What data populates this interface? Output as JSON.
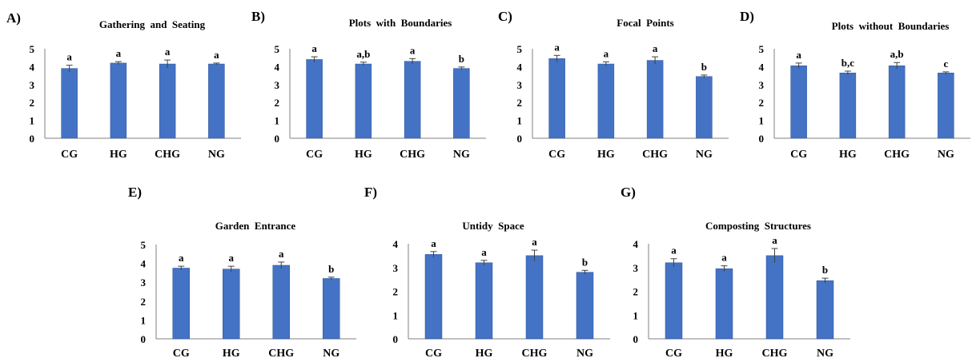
{
  "colors": {
    "bar": "#4472C4",
    "bar_edge": "#2F5597",
    "error_bar": "#404040",
    "axis": "#808080"
  },
  "chart_data": [
    {
      "type": "bar",
      "panel": "A)",
      "title": "Gathering  and  Seating",
      "categories": [
        "CG",
        "HG",
        "CHG",
        "NG"
      ],
      "values": [
        3.9,
        4.2,
        4.15,
        4.15
      ],
      "errors": [
        0.18,
        0.08,
        0.22,
        0.05
      ],
      "significance": [
        "a",
        "a",
        "a",
        "a"
      ],
      "ylim": [
        0,
        5
      ],
      "yticks": [
        "0",
        "1",
        "2",
        "3",
        "4",
        "5"
      ]
    },
    {
      "type": "bar",
      "panel": "B)",
      "title": "Plots  with  Boundaries",
      "categories": [
        "CG",
        "HG",
        "CHG",
        "NG"
      ],
      "values": [
        4.4,
        4.15,
        4.3,
        3.9
      ],
      "errors": [
        0.15,
        0.1,
        0.15,
        0.08
      ],
      "significance": [
        "a",
        "a,b",
        "a",
        "b"
      ],
      "ylim": [
        0,
        5
      ],
      "yticks": [
        "0",
        "1",
        "2",
        "3",
        "4",
        "5"
      ]
    },
    {
      "type": "bar",
      "panel": "C)",
      "title": "Focal  Points",
      "categories": [
        "CG",
        "HG",
        "CHG",
        "NG"
      ],
      "values": [
        4.45,
        4.15,
        4.35,
        3.45
      ],
      "errors": [
        0.18,
        0.12,
        0.2,
        0.08
      ],
      "significance": [
        "a",
        "a",
        "a",
        "b"
      ],
      "ylim": [
        0,
        5
      ],
      "yticks": [
        "0",
        "1",
        "2",
        "3",
        "4",
        "5"
      ]
    },
    {
      "type": "bar",
      "panel": "D)",
      "title": "Plots  without  Boundaries",
      "categories": [
        "CG",
        "HG",
        "CHG",
        "NG"
      ],
      "values": [
        4.05,
        3.65,
        4.05,
        3.65
      ],
      "errors": [
        0.15,
        0.1,
        0.18,
        0.06
      ],
      "significance": [
        "a",
        "b,c",
        "a,b",
        "c"
      ],
      "ylim": [
        0,
        5
      ],
      "yticks": [
        "0",
        "1",
        "2",
        "3",
        "4",
        "5"
      ]
    },
    {
      "type": "bar",
      "panel": "E)",
      "title": "Garden  Entrance",
      "categories": [
        "CG",
        "HG",
        "CHG",
        "NG"
      ],
      "values": [
        3.75,
        3.7,
        3.9,
        3.2
      ],
      "errors": [
        0.1,
        0.15,
        0.17,
        0.07
      ],
      "significance": [
        "a",
        "a",
        "a",
        "b"
      ],
      "ylim": [
        0,
        5
      ],
      "yticks": [
        "0",
        "1",
        "2",
        "3",
        "4",
        "5"
      ]
    },
    {
      "type": "bar",
      "panel": "F)",
      "title": "Untidy  Space",
      "categories": [
        "CG",
        "HG",
        "CHG",
        "NG"
      ],
      "values": [
        3.55,
        3.2,
        3.5,
        2.8
      ],
      "errors": [
        0.12,
        0.1,
        0.23,
        0.08
      ],
      "significance": [
        "a",
        "a",
        "a",
        "b"
      ],
      "ylim": [
        0,
        4
      ],
      "yticks": [
        "0",
        "1",
        "2",
        "3",
        "4"
      ]
    },
    {
      "type": "bar",
      "panel": "G)",
      "title": "Composting  Structures",
      "categories": [
        "CG",
        "HG",
        "CHG",
        "NG"
      ],
      "values": [
        3.2,
        2.95,
        3.5,
        2.45
      ],
      "errors": [
        0.17,
        0.12,
        0.3,
        0.1
      ],
      "significance": [
        "a",
        "a",
        "a",
        "b"
      ],
      "ylim": [
        0,
        4
      ],
      "yticks": [
        "0",
        "1",
        "2",
        "3",
        "4"
      ]
    }
  ]
}
